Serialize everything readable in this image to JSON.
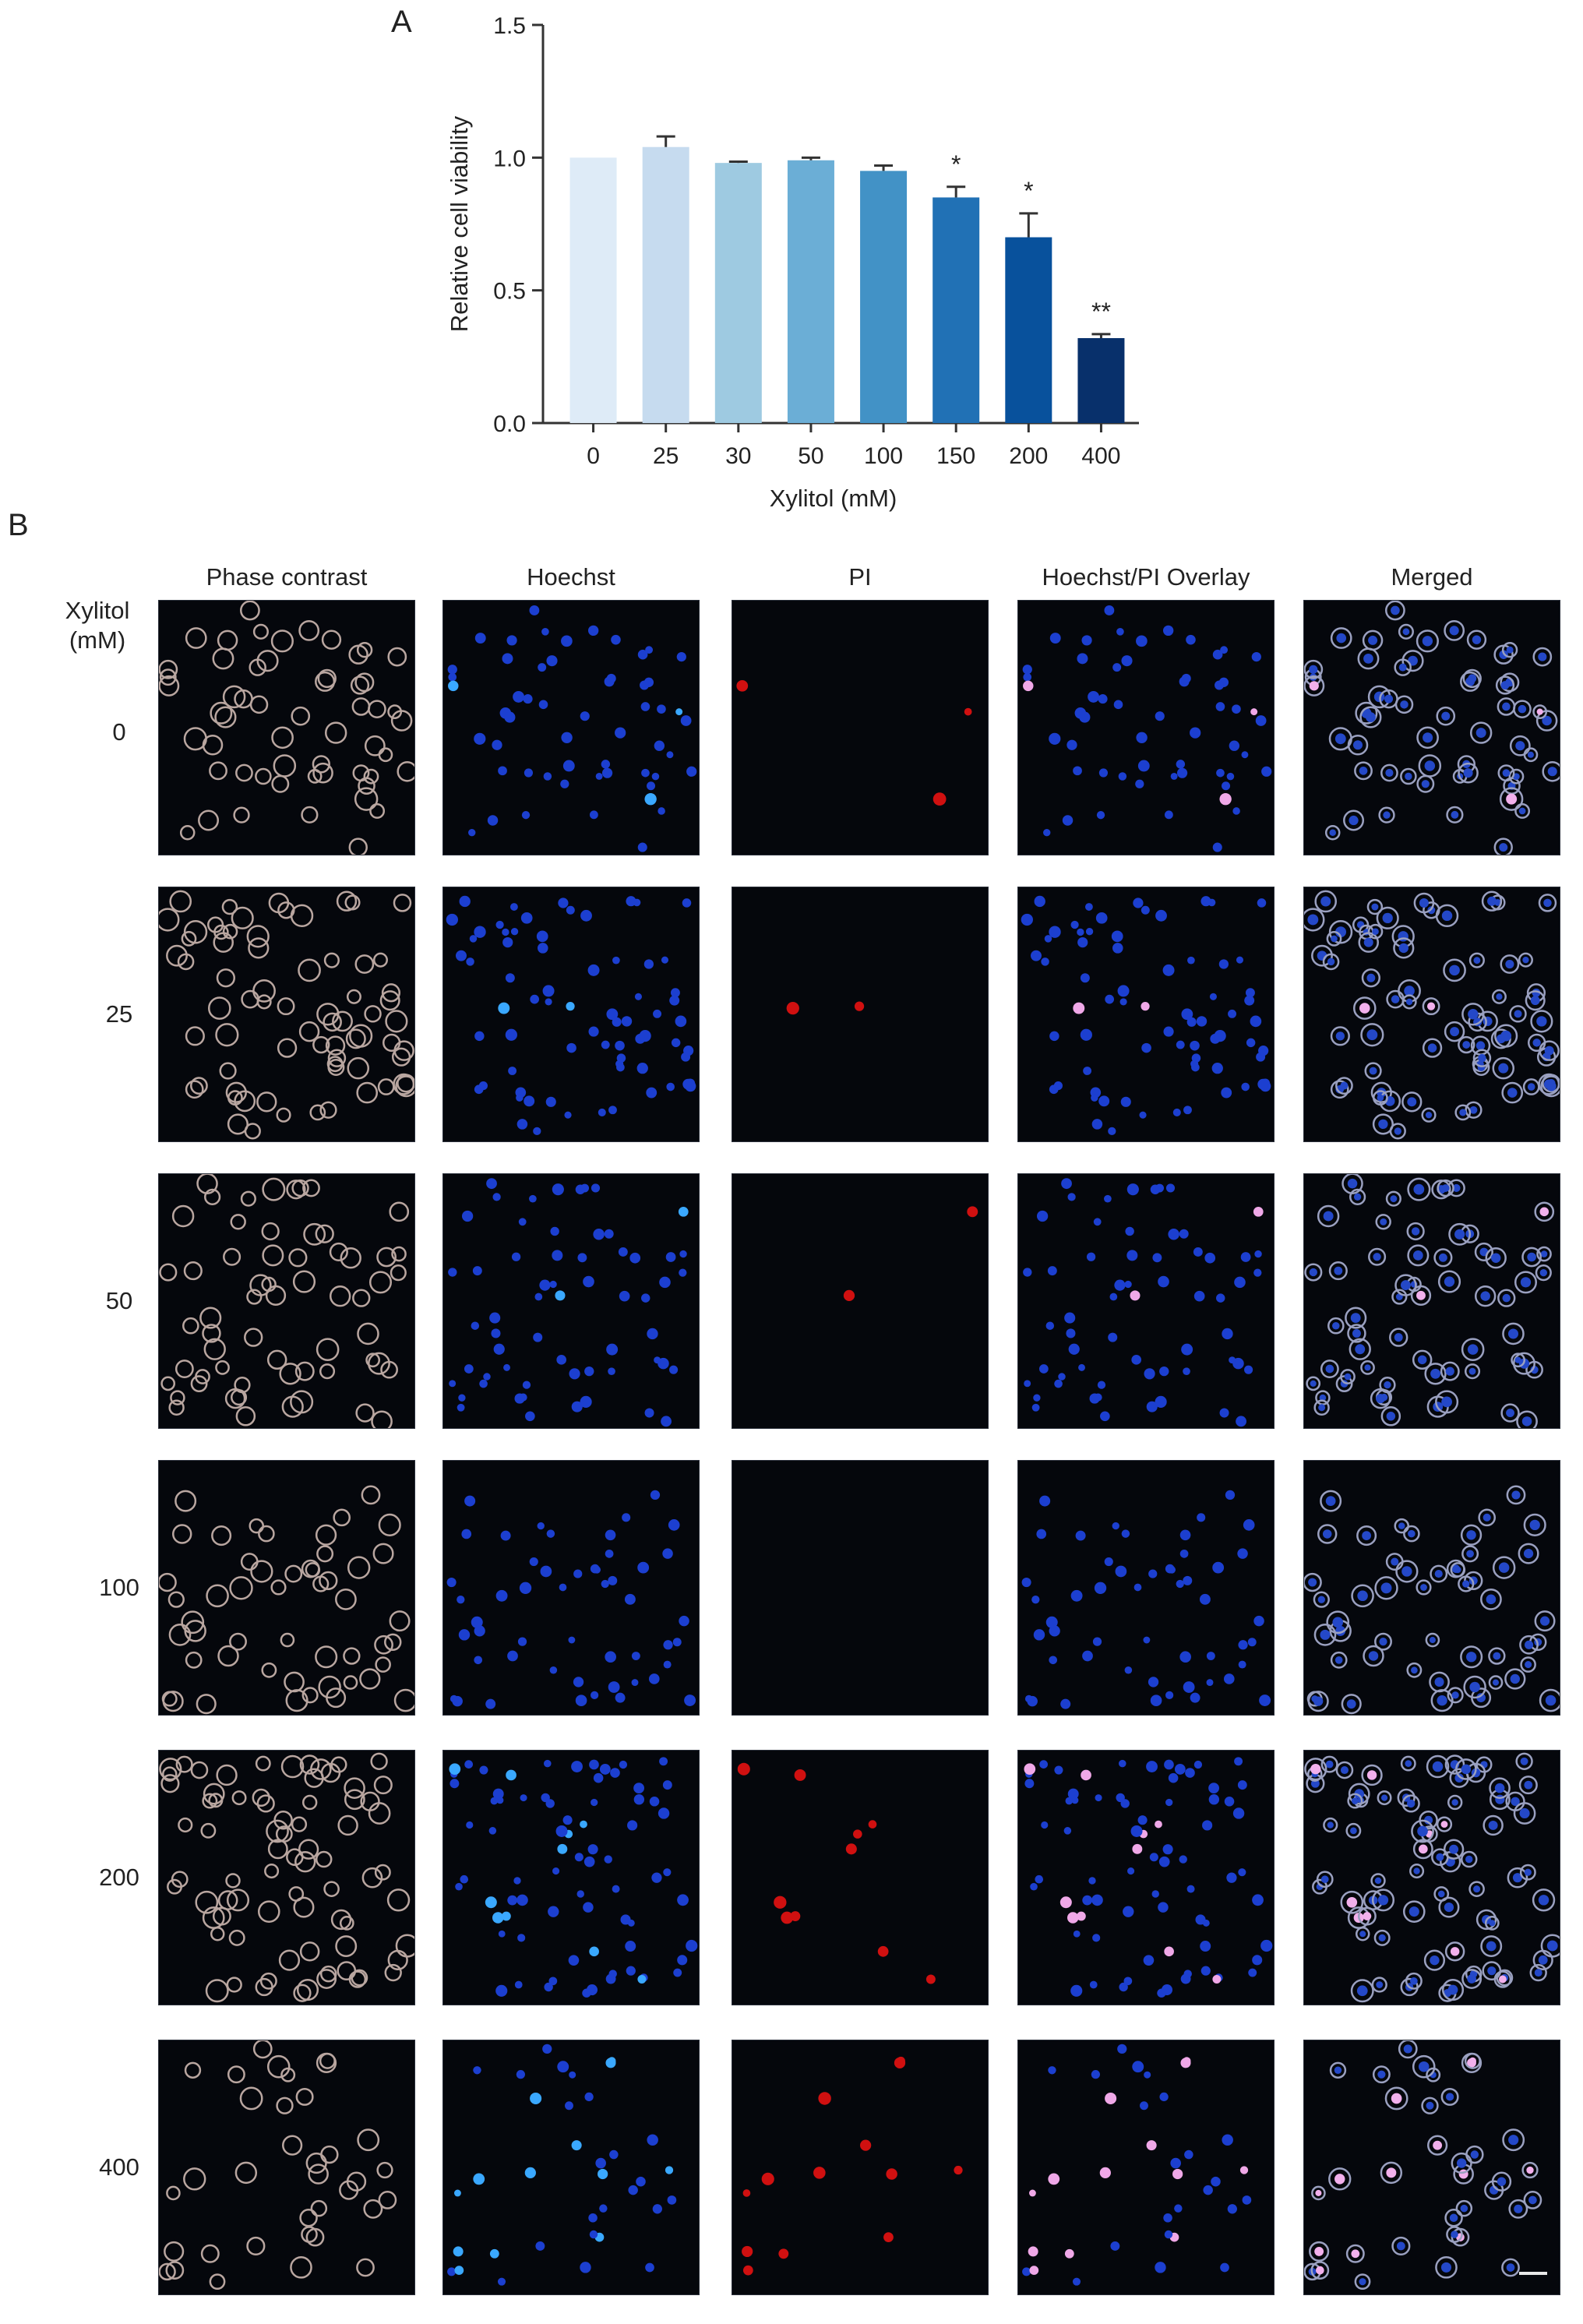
{
  "panel_a_label": "A",
  "panel_b_label": "B",
  "chart_data": {
    "type": "bar",
    "categories": [
      "0",
      "25",
      "30",
      "50",
      "100",
      "150",
      "200",
      "400"
    ],
    "values": [
      1.0,
      1.04,
      0.98,
      0.99,
      0.95,
      0.85,
      0.7,
      0.32
    ],
    "errors": [
      0.0,
      0.04,
      0.005,
      0.01,
      0.02,
      0.04,
      0.09,
      0.015
    ],
    "significance": [
      "",
      "",
      "",
      "",
      "",
      "*",
      "*",
      "**"
    ],
    "xlabel": "Xylitol (mM)",
    "ylabel": "Relative cell viability",
    "ylim": [
      0,
      1.5
    ],
    "yticks": [
      "0.0",
      "0.5",
      "1.0",
      "1.5"
    ],
    "colors": [
      "#deebf7",
      "#c6dbef",
      "#9ecae1",
      "#6baed6",
      "#4292c6",
      "#2171b5",
      "#08519c",
      "#08306b"
    ],
    "grid": false,
    "legend": "none"
  },
  "panel_b": {
    "row_title": "Xylitol\n(mM)",
    "columns": [
      "Phase contrast",
      "Hoechst",
      "PI",
      "Hoechst/PI Overlay",
      "Merged"
    ],
    "rows": [
      "0",
      "25",
      "50",
      "100",
      "200",
      "400"
    ]
  }
}
